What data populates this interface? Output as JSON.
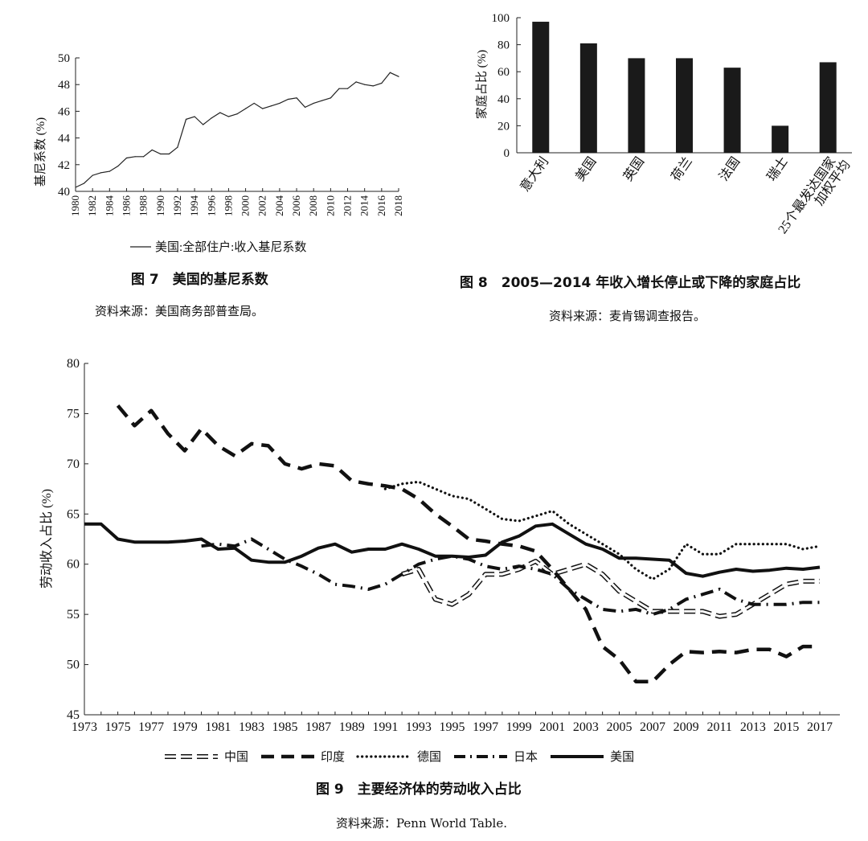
{
  "figures": {
    "fig7": {
      "caption": "图 7　美国的基尼系数",
      "source": "资料来源：美国商务部普查局。"
    },
    "fig8": {
      "caption": "图 8　2005—2014 年收入增长停止或下降的家庭占比",
      "source": "资料来源：麦肯锡调查报告。"
    },
    "fig9": {
      "caption": "图 9　主要经济体的劳动收入占比",
      "source": "资料来源：Penn World Table."
    }
  },
  "chart_data": [
    {
      "id": "gini",
      "type": "line",
      "title": "美国的基尼系数",
      "ylabel": "基尼系数 (%)",
      "xlabel": "",
      "ylim": [
        40,
        50
      ],
      "yticks": [
        40,
        42,
        44,
        46,
        48,
        50
      ],
      "xlim": [
        1980,
        2018
      ],
      "xticks": [
        "1980",
        "1982",
        "1984",
        "1986",
        "1988",
        "1990",
        "1992",
        "1994",
        "1996",
        "1998",
        "2000",
        "2002",
        "2004",
        "2006",
        "2008",
        "2010",
        "2012",
        "2014",
        "2016",
        "2018"
      ],
      "legend": [
        "美国:全部住户:收入基尼系数"
      ],
      "series": [
        {
          "name": "美国:全部住户:收入基尼系数",
          "x": [
            1980,
            1981,
            1982,
            1983,
            1984,
            1985,
            1986,
            1987,
            1988,
            1989,
            1990,
            1991,
            1992,
            1993,
            1994,
            1995,
            1996,
            1997,
            1998,
            1999,
            2000,
            2001,
            2002,
            2003,
            2004,
            2005,
            2006,
            2007,
            2008,
            2009,
            2010,
            2011,
            2012,
            2013,
            2014,
            2015,
            2016,
            2017,
            2018
          ],
          "values": [
            40.3,
            40.6,
            41.2,
            41.4,
            41.5,
            41.9,
            42.5,
            42.6,
            42.6,
            43.1,
            42.8,
            42.8,
            43.3,
            45.4,
            45.6,
            45.0,
            45.5,
            45.9,
            45.6,
            45.8,
            46.2,
            46.6,
            46.2,
            46.4,
            46.6,
            46.9,
            47.0,
            46.3,
            46.6,
            46.8,
            47.0,
            47.7,
            47.7,
            48.2,
            48.0,
            47.9,
            48.1,
            48.9,
            48.6
          ]
        }
      ]
    },
    {
      "id": "stagnation",
      "type": "bar",
      "title": "2005—2014 年收入增长停止或下降的家庭占比",
      "ylabel": "家庭占比 (%)",
      "ylim": [
        0,
        100
      ],
      "yticks": [
        0,
        20,
        40,
        60,
        80,
        100
      ],
      "categories": [
        "意大利",
        "美国",
        "英国",
        "荷兰",
        "法国",
        "瑞士",
        "25个最发达国家加权平均"
      ],
      "category_labels": [
        [
          "意大利"
        ],
        [
          "美国"
        ],
        [
          "英国"
        ],
        [
          "荷兰"
        ],
        [
          "法国"
        ],
        [
          "瑞士"
        ],
        [
          "25个最发达国家",
          "加权平均"
        ]
      ],
      "values": [
        97,
        81,
        70,
        70,
        63,
        20,
        67
      ]
    },
    {
      "id": "laborshare",
      "type": "line",
      "title": "主要经济体的劳动收入占比",
      "ylabel": "劳动收入占比 (%)",
      "ylim": [
        45,
        80
      ],
      "yticks": [
        45,
        50,
        55,
        60,
        65,
        70,
        75,
        80
      ],
      "xlim": [
        1973,
        2017
      ],
      "xticks": [
        "1973",
        "1975",
        "1977",
        "1979",
        "1981",
        "1983",
        "1985",
        "1987",
        "1989",
        "1991",
        "1993",
        "1995",
        "1997",
        "1999",
        "2001",
        "2003",
        "2005",
        "2007",
        "2009",
        "2011",
        "2013",
        "2015",
        "2017"
      ],
      "series": [
        {
          "name": "中国",
          "style": "hollow-dash",
          "x": [
            1992,
            1993,
            1994,
            1995,
            1996,
            1997,
            1998,
            1999,
            2000,
            2001,
            2002,
            2003,
            2004,
            2005,
            2006,
            2007,
            2008,
            2009,
            2010,
            2011,
            2012,
            2013,
            2014,
            2015,
            2016,
            2017
          ],
          "values": [
            59.0,
            59.5,
            56.5,
            56.0,
            57.0,
            59.0,
            59.0,
            59.5,
            60.3,
            59.0,
            59.5,
            60.0,
            59.0,
            57.3,
            56.3,
            55.3,
            55.3,
            55.3,
            55.3,
            54.8,
            55.0,
            56.0,
            57.0,
            58.0,
            58.3,
            58.3
          ]
        },
        {
          "name": "印度",
          "style": "long-dash",
          "x": [
            1975,
            1976,
            1977,
            1978,
            1979,
            1980,
            1981,
            1982,
            1983,
            1984,
            1985,
            1986,
            1987,
            1988,
            1989,
            1990,
            1991,
            1992,
            1993,
            1994,
            1995,
            1996,
            1997,
            1998,
            1999,
            2000,
            2001,
            2002,
            2003,
            2004,
            2005,
            2006,
            2007,
            2008,
            2009,
            2010,
            2011,
            2012,
            2013,
            2014,
            2015,
            2016,
            2017
          ],
          "values": [
            75.8,
            73.8,
            75.3,
            73.0,
            71.3,
            73.5,
            71.8,
            70.8,
            72.0,
            71.8,
            70.0,
            69.5,
            70.0,
            69.8,
            68.3,
            68.0,
            67.8,
            67.5,
            66.5,
            65.0,
            63.8,
            62.5,
            62.3,
            62.0,
            61.8,
            61.3,
            59.5,
            57.5,
            55.5,
            51.8,
            50.5,
            48.3,
            48.3,
            50.0,
            51.3,
            51.2,
            51.3,
            51.2,
            51.5,
            51.5,
            50.8,
            51.8,
            51.8
          ]
        },
        {
          "name": "德国",
          "style": "dotted",
          "x": [
            1991,
            1992,
            1993,
            1994,
            1995,
            1996,
            1997,
            1998,
            1999,
            2000,
            2001,
            2002,
            2003,
            2004,
            2005,
            2006,
            2007,
            2008,
            2009,
            2010,
            2011,
            2012,
            2013,
            2014,
            2015,
            2016,
            2017
          ],
          "values": [
            67.5,
            68.0,
            68.2,
            67.5,
            66.8,
            66.5,
            65.5,
            64.5,
            64.3,
            64.8,
            65.3,
            64.0,
            63.0,
            62.0,
            61.0,
            59.5,
            58.5,
            59.5,
            62.0,
            61.0,
            61.0,
            62.0,
            62.0,
            62.0,
            62.0,
            61.5,
            61.8
          ]
        },
        {
          "name": "日本",
          "style": "dash-dot",
          "x": [
            1980,
            1981,
            1982,
            1983,
            1984,
            1985,
            1986,
            1987,
            1988,
            1989,
            1990,
            1991,
            1992,
            1993,
            1994,
            1995,
            1996,
            1997,
            1998,
            1999,
            2000,
            2001,
            2002,
            2003,
            2004,
            2005,
            2006,
            2007,
            2008,
            2009,
            2010,
            2011,
            2012,
            2013,
            2014,
            2015,
            2016,
            2017
          ],
          "values": [
            61.8,
            62.0,
            61.8,
            62.5,
            61.5,
            60.5,
            59.8,
            59.0,
            58.0,
            57.8,
            57.5,
            58.0,
            59.0,
            60.0,
            60.5,
            60.8,
            60.5,
            59.8,
            59.5,
            59.8,
            59.5,
            59.0,
            57.5,
            56.5,
            55.5,
            55.3,
            55.5,
            55.0,
            55.5,
            56.5,
            57.0,
            57.5,
            56.5,
            56.0,
            56.0,
            56.0,
            56.2,
            56.2
          ]
        },
        {
          "name": "美国",
          "style": "solid-bold",
          "x": [
            1973,
            1974,
            1975,
            1976,
            1977,
            1978,
            1979,
            1980,
            1981,
            1982,
            1983,
            1984,
            1985,
            1986,
            1987,
            1988,
            1989,
            1990,
            1991,
            1992,
            1993,
            1994,
            1995,
            1996,
            1997,
            1998,
            1999,
            2000,
            2001,
            2002,
            2003,
            2004,
            2005,
            2006,
            2007,
            2008,
            2009,
            2010,
            2011,
            2012,
            2013,
            2014,
            2015,
            2016,
            2017
          ],
          "values": [
            64.0,
            64.0,
            62.5,
            62.2,
            62.2,
            62.2,
            62.3,
            62.5,
            61.5,
            61.6,
            60.4,
            60.2,
            60.2,
            60.8,
            61.6,
            62.0,
            61.2,
            61.5,
            61.5,
            62.0,
            61.5,
            60.8,
            60.8,
            60.7,
            60.9,
            62.2,
            62.8,
            63.8,
            64.0,
            63.0,
            62.0,
            61.5,
            60.6,
            60.6,
            60.5,
            60.4,
            59.1,
            58.8,
            59.2,
            59.5,
            59.3,
            59.4,
            59.6,
            59.5,
            59.7
          ]
        }
      ]
    }
  ]
}
